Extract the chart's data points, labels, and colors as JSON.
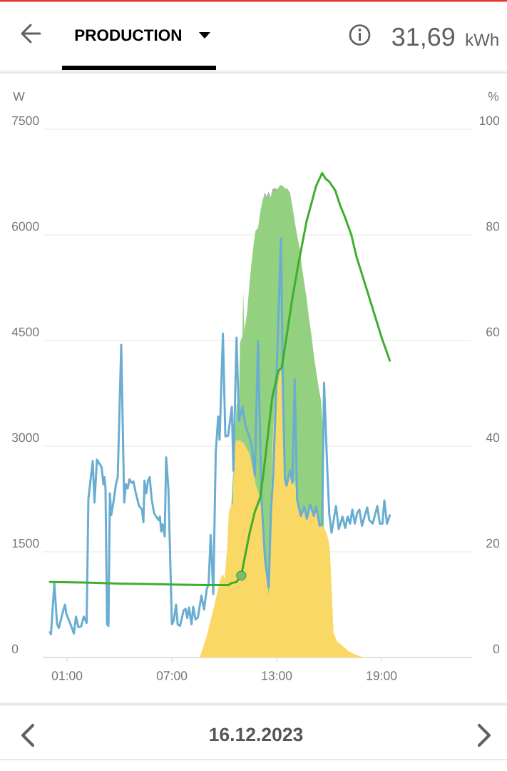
{
  "chart_data": {
    "type": "area",
    "title": "PRODUCTION",
    "ylabel": "W",
    "y2label": "%",
    "annotations": [
      "31,69",
      "kWh",
      "16.12.2023"
    ],
    "x": [
      8.59,
      9.0,
      9.41,
      9.75,
      9.89,
      10.02,
      10.16,
      10.26,
      10.4,
      10.5,
      10.58,
      10.7,
      10.84,
      10.9,
      11.04,
      11.08,
      11.15,
      11.31,
      11.42,
      11.52,
      11.69,
      11.79,
      11.93,
      12.06,
      12.2,
      12.33,
      12.42,
      12.54,
      12.65,
      12.75,
      12.88,
      13.02,
      13.15,
      13.24,
      13.37,
      13.42,
      13.62,
      13.76,
      13.9,
      14.03,
      14.17,
      14.31,
      14.44,
      14.58,
      14.71,
      14.85,
      14.99,
      15.12,
      15.26,
      15.4,
      15.53,
      15.62,
      15.7,
      15.8,
      15.94,
      16.04,
      16.14,
      16.25,
      16.45,
      16.75,
      17.1,
      17.5,
      18.0
    ],
    "xlim": [
      -0.39,
      24.18
    ],
    "xticks": [
      {
        "value": 1,
        "label": "01:00"
      },
      {
        "value": 7,
        "label": "07:00"
      },
      {
        "value": 13,
        "label": "13:00"
      },
      {
        "value": 19,
        "label": "19:00"
      }
    ],
    "ylim": [
      0,
      7500
    ],
    "yticks": [
      0,
      1500,
      3000,
      4500,
      6000,
      7500
    ],
    "y2lim": [
      0,
      100
    ],
    "y2ticks": [
      0,
      20,
      40,
      60,
      80,
      100
    ],
    "grid": "y",
    "stacked": true,
    "series": [
      {
        "color": "#f9d866",
        "values": [
          0,
          310,
          720,
          1090,
          1190,
          1120,
          1560,
          2070,
          2170,
          2170,
          3000,
          3080,
          3080,
          3080,
          3050,
          3050,
          3020,
          2950,
          2900,
          2800,
          2600,
          2450,
          2350,
          2250,
          1800,
          1400,
          1150,
          850,
          1900,
          3000,
          3600,
          3800,
          4000,
          4130,
          3000,
          2550,
          2450,
          2600,
          2470,
          2500,
          2240,
          2050,
          2050,
          2130,
          1970,
          2100,
          2150,
          2000,
          2130,
          1900,
          1870,
          1850,
          1850,
          1800,
          1690,
          1540,
          1000,
          350,
          230,
          170,
          90,
          40,
          0
        ]
      },
      {
        "color": "#93d07f",
        "values": [
          0,
          0,
          0,
          0,
          0,
          0,
          0,
          0,
          0,
          440,
          0,
          500,
          580,
          1390,
          1520,
          2160,
          1620,
          1960,
          2350,
          2720,
          3290,
          3610,
          3750,
          4080,
          4700,
          5170,
          5370,
          5730,
          4610,
          3610,
          3050,
          2820,
          2690,
          2580,
          3690,
          4120,
          4200,
          4000,
          3930,
          3690,
          3750,
          3770,
          3500,
          3180,
          3140,
          2710,
          2420,
          2300,
          1930,
          1930,
          1790,
          1450,
          0,
          0,
          0,
          0,
          0,
          0,
          0,
          0,
          0,
          0,
          0
        ]
      },
      {
        "color": "#9e9e9e",
        "values": [
          null,
          null,
          null,
          null,
          null,
          null,
          null,
          null,
          null,
          null,
          null,
          null,
          null,
          null,
          null,
          null,
          null,
          null,
          null,
          null,
          null,
          null,
          null,
          null,
          0,
          30,
          20,
          30,
          20,
          30,
          20,
          20,
          0,
          null,
          null,
          null,
          null,
          null,
          null,
          null,
          null,
          null,
          null,
          null,
          null,
          null,
          null,
          null,
          null,
          null,
          null,
          null,
          null,
          null,
          null,
          null,
          null,
          null,
          null,
          null,
          null,
          null,
          null
        ]
      },
      {
        "type": "line",
        "color": "#6aadd2",
        "x": [
          0.02,
          0.08,
          0.27,
          0.43,
          0.53,
          0.73,
          0.88,
          0.96,
          1.2,
          1.39,
          1.51,
          1.65,
          1.8,
          1.96,
          2.12,
          2.22,
          2.47,
          2.57,
          2.71,
          2.88,
          2.98,
          3.08,
          3.14,
          3.2,
          3.29,
          3.37,
          3.45,
          3.53,
          3.65,
          3.8,
          3.9,
          4.1,
          4.27,
          4.37,
          4.47,
          4.57,
          4.7,
          4.8,
          4.92,
          5.12,
          5.29,
          5.37,
          5.43,
          5.53,
          5.63,
          5.73,
          5.84,
          5.98,
          6.1,
          6.24,
          6.31,
          6.39,
          6.47,
          6.59,
          6.67,
          6.8,
          7.0,
          7.1,
          7.24,
          7.33,
          7.47,
          7.67,
          7.78,
          7.88,
          7.98,
          8.12,
          8.22,
          8.35,
          8.49,
          8.69,
          8.84,
          9.0,
          9.1,
          9.22,
          9.37,
          9.51,
          9.65,
          9.73,
          9.92,
          10.06,
          10.22,
          10.43,
          10.52,
          10.7,
          10.84,
          11.04,
          11.2,
          11.45,
          11.58,
          11.75,
          11.93,
          12.13,
          12.33,
          12.54,
          12.67,
          12.8,
          12.95,
          13.24,
          13.37,
          13.47,
          13.56,
          13.76,
          13.9,
          14.03,
          14.17,
          14.38,
          14.58,
          14.72,
          14.92,
          15.12,
          15.26,
          15.46,
          15.6,
          15.71,
          15.9,
          16.01,
          16.14,
          16.39,
          16.55,
          16.76,
          16.92,
          17.06,
          17.2,
          17.33,
          17.47,
          17.6,
          17.73,
          17.88,
          18.08,
          18.18,
          18.3,
          18.49,
          18.6,
          18.76,
          18.9,
          19.05,
          19.16,
          19.31,
          19.47
        ],
        "values": [
          360,
          330,
          1050,
          470,
          420,
          620,
          750,
          620,
          470,
          340,
          580,
          430,
          440,
          580,
          490,
          2250,
          2790,
          2200,
          2810,
          2740,
          2700,
          2460,
          2560,
          2400,
          470,
          450,
          2330,
          2020,
          2200,
          2460,
          2560,
          4440,
          2200,
          2460,
          2400,
          2530,
          2480,
          2500,
          2350,
          2150,
          2100,
          1920,
          2510,
          2330,
          2510,
          2560,
          2250,
          2050,
          2000,
          1950,
          2000,
          1790,
          1890,
          1720,
          2840,
          2400,
          470,
          520,
          750,
          470,
          450,
          670,
          690,
          560,
          710,
          470,
          720,
          540,
          570,
          880,
          680,
          980,
          1030,
          1740,
          900,
          2910,
          3420,
          3090,
          4600,
          3140,
          3150,
          3560,
          2650,
          4540,
          3360,
          3560,
          3300,
          3120,
          2980,
          2580,
          4490,
          2240,
          1400,
          990,
          2070,
          2600,
          3650,
          5950,
          3660,
          2540,
          2440,
          2650,
          2480,
          3950,
          2240,
          2010,
          2140,
          1970,
          2170,
          2010,
          2140,
          1870,
          1900,
          3900,
          2630,
          2030,
          1770,
          2150,
          1820,
          2000,
          1840,
          2000,
          1900,
          2100,
          1900,
          2050,
          2100,
          1870,
          2050,
          2130,
          1950,
          1900,
          2000,
          2150,
          1900,
          1900,
          2230,
          1900,
          2020
        ]
      },
      {
        "type": "line",
        "color": "#3daf2c",
        "axis": "y2",
        "x": [
          0.02,
          2.0,
          4.0,
          6.0,
          7.5,
          9.0,
          10.22,
          10.43,
          10.7,
          10.97,
          11.18,
          11.45,
          11.75,
          12.06,
          12.27,
          12.54,
          12.74,
          13.08,
          13.29,
          13.9,
          14.24,
          14.71,
          15.26,
          15.6,
          15.8,
          16.0,
          16.35,
          16.65,
          16.89,
          17.27,
          17.57,
          18.18,
          19.0,
          19.47
        ],
        "values": [
          14.3,
          14.2,
          14.0,
          13.9,
          13.8,
          13.7,
          13.7,
          14.1,
          14.3,
          15.5,
          19.1,
          23.6,
          27.6,
          30.3,
          35.7,
          43.4,
          49.1,
          54.2,
          54.9,
          68.1,
          74.5,
          82.6,
          89.3,
          91.7,
          90.6,
          90.1,
          88.4,
          85.4,
          83.5,
          80.0,
          75.8,
          69.4,
          60.6,
          56.2
        ]
      },
      {
        "type": "scatter",
        "color": "#74c262",
        "axis": "y2",
        "marker": "circle",
        "x": [
          10.97
        ],
        "values": [
          15.5
        ]
      }
    ]
  }
}
